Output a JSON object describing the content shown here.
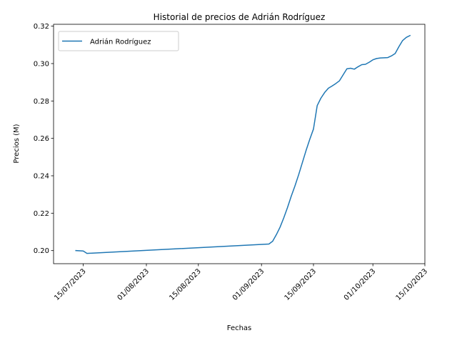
{
  "chart_data": {
    "type": "line",
    "title": "Historial de precios de Adrián Rodríguez",
    "xlabel": "Fechas",
    "ylabel": "Precios (M)",
    "x_tick_labels": [
      "15/07/2023",
      "01/08/2023",
      "15/08/2023",
      "01/09/2023",
      "15/09/2023",
      "01/10/2023",
      "15/10/2023"
    ],
    "x_tick_dates": [
      "2023-07-15",
      "2023-08-01",
      "2023-08-15",
      "2023-09-01",
      "2023-09-15",
      "2023-10-01",
      "2023-10-15"
    ],
    "y_tick_labels": [
      "0.20",
      "0.22",
      "0.24",
      "0.26",
      "0.28",
      "0.30",
      "0.32"
    ],
    "y_ticks": [
      0.2,
      0.22,
      0.24,
      0.26,
      0.28,
      0.3,
      0.32
    ],
    "xlim": [
      "2023-07-07",
      "2023-10-15"
    ],
    "ylim": [
      0.193,
      0.321
    ],
    "grid": false,
    "legend_position": "upper-left",
    "series": [
      {
        "name": "Adrián Rodríguez",
        "color": "#1f77b4",
        "x": [
          "2023-07-13",
          "2023-07-15",
          "2023-07-16",
          "2023-09-03",
          "2023-09-04",
          "2023-09-05",
          "2023-09-06",
          "2023-09-07",
          "2023-09-08",
          "2023-09-09",
          "2023-09-10",
          "2023-09-11",
          "2023-09-12",
          "2023-09-13",
          "2023-09-14",
          "2023-09-15",
          "2023-09-16",
          "2023-09-17",
          "2023-09-18",
          "2023-09-19",
          "2023-09-20",
          "2023-09-21",
          "2023-09-22",
          "2023-09-23",
          "2023-09-24",
          "2023-09-25",
          "2023-09-26",
          "2023-09-27",
          "2023-09-28",
          "2023-09-29",
          "2023-09-30",
          "2023-10-01",
          "2023-10-02",
          "2023-10-03",
          "2023-10-04",
          "2023-10-05",
          "2023-10-06",
          "2023-10-07",
          "2023-10-08",
          "2023-10-09",
          "2023-10-10",
          "2023-10-11"
        ],
        "y": [
          0.2,
          0.1998,
          0.1985,
          0.2035,
          0.205,
          0.2085,
          0.2125,
          0.2175,
          0.223,
          0.229,
          0.2345,
          0.2405,
          0.247,
          0.2535,
          0.2595,
          0.265,
          0.2775,
          0.2815,
          0.2845,
          0.2868,
          0.288,
          0.2893,
          0.2908,
          0.294,
          0.2972,
          0.2975,
          0.297,
          0.2983,
          0.2994,
          0.2996,
          0.3007,
          0.302,
          0.3027,
          0.303,
          0.3031,
          0.3032,
          0.3041,
          0.3054,
          0.309,
          0.3123,
          0.314,
          0.315
        ]
      }
    ]
  }
}
